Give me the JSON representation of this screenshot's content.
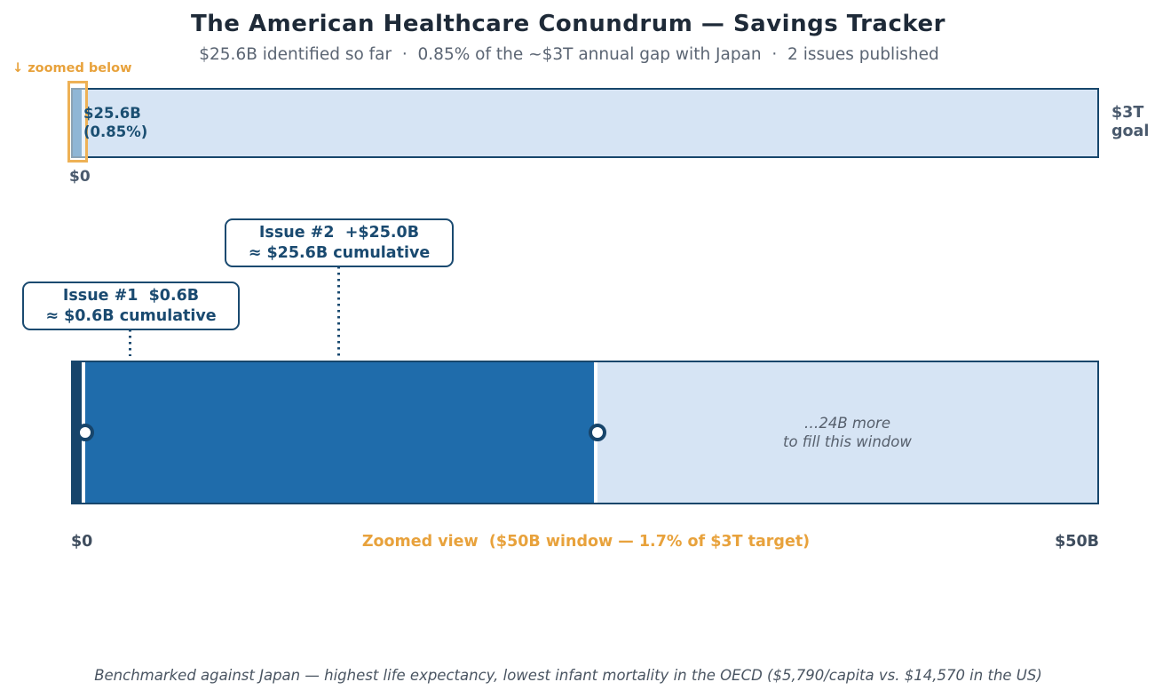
{
  "header": {
    "title": "The American Healthcare Conundrum — Savings Tracker",
    "subtitle": "$25.6B identified so far  ·  0.85% of the ~$3T annual gap with Japan  ·  2 issues published"
  },
  "overall_bar": {
    "zoom_hint": "↓ zoomed below",
    "fill_label_line1": "$25.6B",
    "fill_label_line2": "(0.85%)",
    "start_label": "$0",
    "goal_label_line1": "$3T",
    "goal_label_line2": "goal"
  },
  "annotations": {
    "issue2": {
      "line1": "Issue #2  +$25.0B",
      "line2": "≈ $25.6B cumulative"
    },
    "issue1": {
      "line1": "Issue #1  $0.6B",
      "line2": "≈ $0.6B cumulative"
    }
  },
  "zoom_bar": {
    "remaining_line1": "…24B more",
    "remaining_line2": "to fill this window",
    "start_label": "$0",
    "axis_label": "Zoomed view  ($50B window — 1.7% of $3T target)",
    "end_label": "$50B"
  },
  "footer": {
    "note": "Benchmarked against Japan — highest life expectancy, lowest infant mortality in the OECD ($5,790/capita vs. $14,570 in the US)"
  },
  "colors": {
    "accent_orange": "#e8a23c",
    "window_outline_orange": "#eeb155",
    "navy_text": "#1b4f72",
    "bar_border_navy": "#17466b",
    "progress_blue": "#1f6cab",
    "issue1_dark_navy": "#17456b",
    "track_light_blue": "#d6e4f4",
    "title_dark": "#1e2a38",
    "subtitle_gray": "#5b6573",
    "footer_gray": "#4a5562"
  },
  "chart_data": {
    "type": "bar",
    "title": "The American Healthcare Conundrum — Savings Tracker",
    "subtitle": "$25.6B identified so far · 0.85% of the ~$3T annual gap with Japan · 2 issues published",
    "units": "USD billions",
    "overall": {
      "goal": 3000,
      "identified": 25.6,
      "identified_pct_of_goal": 0.85,
      "xlim": [
        0,
        3000
      ],
      "tick_labels": [
        "$0",
        "$3T goal"
      ],
      "fill_color": "#1f6cab",
      "track_color": "#d6e4f4"
    },
    "zoomed_window": {
      "window_max": 50,
      "window_pct_of_goal": 1.7,
      "xlim": [
        0,
        50
      ],
      "tick_labels": [
        "$0",
        "$50B"
      ],
      "segments": [
        {
          "name": "Issue #1",
          "added": 0.6,
          "cumulative": 0.6,
          "color": "#17456b"
        },
        {
          "name": "Issue #2",
          "added": 25.0,
          "cumulative": 25.6,
          "color": "#1f6cab"
        }
      ],
      "remaining_to_fill_window": 24.4,
      "remaining_label": "…24B more to fill this window",
      "axis_label": "Zoomed view  ($50B window — 1.7% of $3T target)"
    },
    "issues_published": 2,
    "legend_position": "none",
    "grid": false
  }
}
